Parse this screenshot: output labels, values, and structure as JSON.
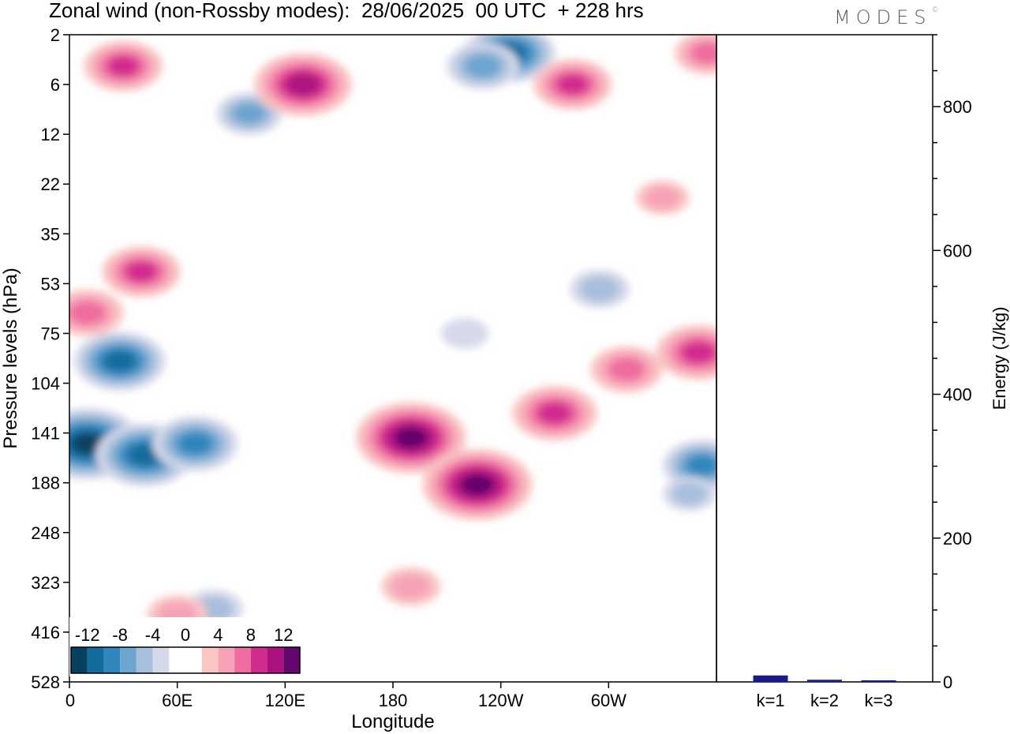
{
  "header": {
    "title": "Zonal wind (non-Rossby modes):  28/06/2025  00 UTC  + 228 hrs",
    "logo": "MODES",
    "logo_mark": "©"
  },
  "chart_data": [
    {
      "type": "heatmap",
      "title": "Zonal wind (non-Rossby modes):  28/06/2025  00 UTC  + 228 hrs",
      "xlabel": "Longitude",
      "ylabel": "Pressure levels (hPa)",
      "x_ticks": [
        "0",
        "60E",
        "120E",
        "180",
        "120W",
        "60W"
      ],
      "x_tick_degrees": [
        0,
        60,
        120,
        180,
        240,
        300
      ],
      "xlim_degrees": [
        0,
        360
      ],
      "y_ticks": [
        "2",
        "6",
        "12",
        "22",
        "35",
        "53",
        "75",
        "104",
        "141",
        "188",
        "248",
        "323",
        "416",
        "528"
      ],
      "colorbar": {
        "labels": [
          "-12",
          "-8",
          "-4",
          "0",
          "4",
          "8",
          "12"
        ],
        "label_bounds": [
          -12,
          -8,
          -4,
          0,
          4,
          8,
          12
        ],
        "bounds": [
          -14,
          -12,
          -10,
          -8,
          -6,
          -4,
          -2,
          2,
          4,
          6,
          8,
          10,
          12,
          14
        ],
        "colors": [
          "#08405f",
          "#136b9c",
          "#2f86bd",
          "#6ca5cf",
          "#a7bfdc",
          "#d6d9ea",
          "#ffffff",
          "#f9c6c4",
          "#f7a3b7",
          "#ee6d9f",
          "#d22c8f",
          "#ab1280",
          "#65066c"
        ]
      },
      "regions": [
        {
          "lon": 10,
          "p": 150,
          "value": -12
        },
        {
          "lon": 28,
          "p": 90,
          "value": -9
        },
        {
          "lon": 42,
          "p": 160,
          "value": -10
        },
        {
          "lon": 70,
          "p": 150,
          "value": -8
        },
        {
          "lon": 80,
          "p": 370,
          "value": -4
        },
        {
          "lon": 352,
          "p": 170,
          "value": -7
        },
        {
          "lon": 345,
          "p": 200,
          "value": -3
        },
        {
          "lon": 245,
          "p": 3,
          "value": -9
        },
        {
          "lon": 230,
          "p": 4,
          "value": -6
        },
        {
          "lon": 100,
          "p": 9,
          "value": -5
        },
        {
          "lon": 295,
          "p": 55,
          "value": -4
        },
        {
          "lon": 220,
          "p": 75,
          "value": -2
        },
        {
          "lon": 130,
          "p": 6,
          "value": 10
        },
        {
          "lon": 30,
          "p": 4,
          "value": 7
        },
        {
          "lon": 40,
          "p": 48,
          "value": 7
        },
        {
          "lon": 10,
          "p": 65,
          "value": 6
        },
        {
          "lon": 190,
          "p": 145,
          "value": 12
        },
        {
          "lon": 227,
          "p": 190,
          "value": 12
        },
        {
          "lon": 270,
          "p": 125,
          "value": 8
        },
        {
          "lon": 310,
          "p": 95,
          "value": 6
        },
        {
          "lon": 350,
          "p": 85,
          "value": 8
        },
        {
          "lon": 190,
          "p": 330,
          "value": 4
        },
        {
          "lon": 60,
          "p": 380,
          "value": 4
        },
        {
          "lon": 280,
          "p": 6,
          "value": 7
        },
        {
          "lon": 355,
          "p": 3,
          "value": 5
        },
        {
          "lon": 330,
          "p": 25,
          "value": 3
        }
      ]
    },
    {
      "type": "bar",
      "categories": [
        "k=1",
        "k=2",
        "k=3"
      ],
      "values": [
        9,
        3,
        2
      ],
      "ylabel": "Energy (J/kg)",
      "ylim": [
        0,
        900
      ],
      "y_ticks": [
        0,
        200,
        400,
        600,
        800
      ],
      "bar_color": "#1a1a8c"
    }
  ]
}
